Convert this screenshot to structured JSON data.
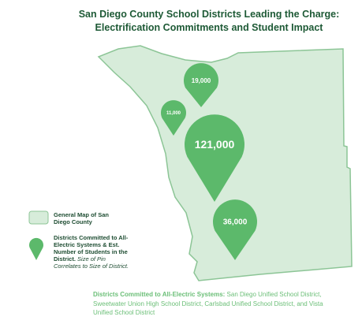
{
  "header": {
    "title_lines": [
      "San Diego County School Districts Leading the Charge:",
      "Electrification Commitments and Student Impact"
    ]
  },
  "pins": [
    {
      "label": "19,000"
    },
    {
      "label": "11,000"
    },
    {
      "label": "121,000"
    },
    {
      "label": "36,000"
    }
  ],
  "legend": {
    "map_label": "General Map of San Diego County",
    "pin_label_bold": "Districts Committed to All-Electric Systems & Est. Number of Students in the District.",
    "pin_label_italic": "Size of Pin Correlates to Size of District."
  },
  "footer": {
    "bold": "Districts Committed to All-Electric Systems:",
    "text": "San Diego Unified School District, Sweetwater Union High School District, Carlsbad Unified School District, and Vista Unified School District"
  }
}
